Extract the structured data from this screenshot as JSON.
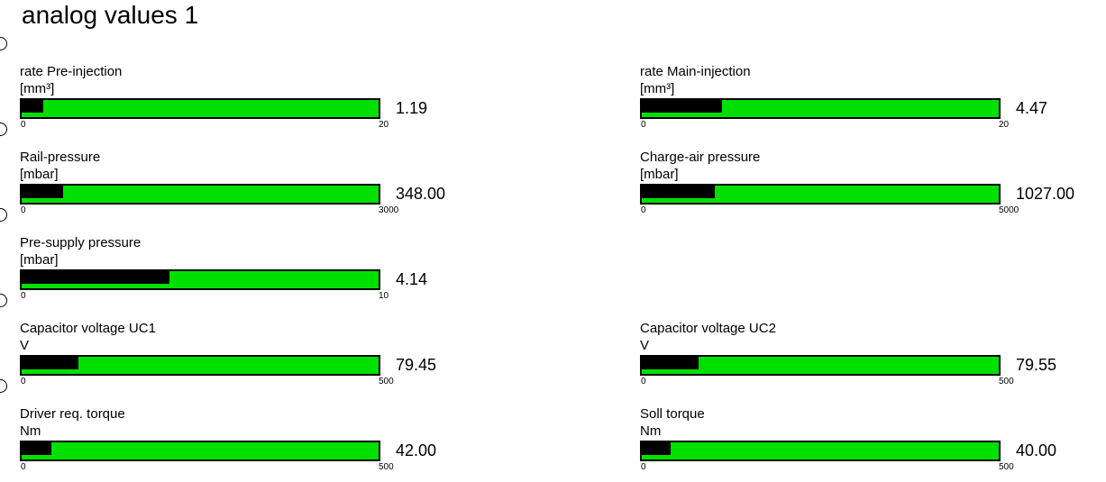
{
  "page": {
    "title": "analog values 1"
  },
  "colors": {
    "bar_background_green": "#00e000",
    "bar_fill_black": "#000000",
    "text": "#000000",
    "page_background": "#ffffff"
  },
  "gauges": [
    {
      "label": "rate Pre-injection",
      "unit": "[mm³]",
      "value": "1.19",
      "value_num": 1.19,
      "min": 0,
      "max": 20,
      "min_label": "0",
      "max_label": "20"
    },
    {
      "label": "rate Main-injection",
      "unit": "[mm³]",
      "value": "4.47",
      "value_num": 4.47,
      "min": 0,
      "max": 20,
      "min_label": "0",
      "max_label": "20"
    },
    {
      "label": "Rail-pressure",
      "unit": "[mbar]",
      "value": "348.00",
      "value_num": 348,
      "min": 0,
      "max": 3000,
      "min_label": "0",
      "max_label": "3000"
    },
    {
      "label": "Charge-air pressure",
      "unit": "[mbar]",
      "value": "1027.00",
      "value_num": 1027,
      "min": 0,
      "max": 5000,
      "min_label": "0",
      "max_label": "5000"
    },
    {
      "label": "Pre-supply pressure",
      "unit": "[mbar]",
      "value": "4.14",
      "value_num": 4.14,
      "min": 0,
      "max": 10,
      "min_label": "0",
      "max_label": "10"
    },
    {
      "label": "Capacitor voltage UC1",
      "unit": "V",
      "value": "79.45",
      "value_num": 79.45,
      "min": 0,
      "max": 500,
      "min_label": "0",
      "max_label": "500"
    },
    {
      "label": "Capacitor voltage UC2",
      "unit": "V",
      "value": "79.55",
      "value_num": 79.55,
      "min": 0,
      "max": 500,
      "min_label": "0",
      "max_label": "500"
    },
    {
      "label": "Driver req. torque",
      "unit": "Nm",
      "value": "42.00",
      "value_num": 42,
      "min": 0,
      "max": 500,
      "min_label": "0",
      "max_label": "500"
    },
    {
      "label": "Soll torque",
      "unit": "Nm",
      "value": "40.00",
      "value_num": 40,
      "min": 0,
      "max": 500,
      "min_label": "0",
      "max_label": "500"
    }
  ],
  "row_indicator_count": 5
}
